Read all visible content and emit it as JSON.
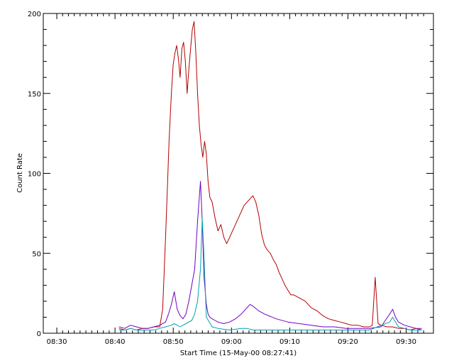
{
  "chart_data": {
    "type": "line",
    "title": "",
    "xlabel": "Start Time (15-May-00 08:27:41)",
    "ylabel": "Count Rate",
    "x_unit": "minutes after 08:27:41",
    "xlim": [
      0,
      67
    ],
    "ylim": [
      0,
      200
    ],
    "grid": false,
    "x_ticks": [
      {
        "value": 2.32,
        "label": "08:30"
      },
      {
        "value": 12.32,
        "label": "08:40"
      },
      {
        "value": 22.32,
        "label": "08:50"
      },
      {
        "value": 32.32,
        "label": "09:00"
      },
      {
        "value": 42.32,
        "label": "09:10"
      },
      {
        "value": 52.32,
        "label": "09:20"
      },
      {
        "value": 62.32,
        "label": "09:30"
      }
    ],
    "y_ticks": [
      {
        "value": 0,
        "label": "0"
      },
      {
        "value": 50,
        "label": "50"
      },
      {
        "value": 100,
        "label": "100"
      },
      {
        "value": 150,
        "label": "150"
      },
      {
        "value": 200,
        "label": "200"
      }
    ],
    "series": [
      {
        "color": "#b30000",
        "x": [
          13.0,
          14.0,
          15.0,
          16.0,
          17.0,
          18.0,
          19.0,
          20.0,
          20.5,
          21.0,
          21.3,
          21.6,
          22.0,
          22.3,
          22.6,
          22.9,
          23.2,
          23.5,
          23.8,
          24.1,
          24.4,
          24.7,
          25.0,
          25.3,
          25.6,
          25.9,
          26.2,
          26.5,
          26.8,
          27.1,
          27.4,
          27.7,
          28.0,
          28.3,
          28.6,
          29.0,
          29.5,
          30.0,
          30.5,
          31.0,
          31.5,
          32.0,
          32.5,
          33.0,
          33.5,
          34.0,
          34.5,
          35.0,
          35.5,
          36.0,
          36.5,
          37.0,
          37.5,
          38.0,
          38.5,
          39.0,
          39.5,
          40.0,
          40.5,
          41.0,
          41.5,
          42.0,
          42.5,
          43.0,
          43.5,
          44.0,
          44.5,
          45.0,
          46.0,
          47.0,
          48.0,
          49.0,
          50.0,
          51.0,
          52.0,
          53.0,
          54.0,
          55.0,
          56.0,
          56.5,
          57.0,
          57.5,
          58.0,
          59.0,
          60.0,
          61.0,
          62.0,
          63.0,
          64.0,
          65.0
        ],
        "y": [
          3,
          2,
          3,
          2,
          3,
          3,
          4,
          4,
          15,
          60,
          90,
          120,
          150,
          168,
          175,
          180,
          172,
          160,
          178,
          182,
          170,
          150,
          165,
          178,
          190,
          195,
          175,
          150,
          130,
          118,
          110,
          120,
          112,
          95,
          85,
          82,
          72,
          64,
          68,
          60,
          56,
          60,
          64,
          68,
          72,
          76,
          80,
          82,
          84,
          86,
          82,
          74,
          62,
          55,
          52,
          50,
          46,
          43,
          38,
          34,
          30,
          27,
          24,
          24,
          23,
          22,
          21,
          20,
          16,
          14,
          11,
          9,
          8,
          7,
          6,
          5,
          5,
          4,
          4,
          5,
          35,
          6,
          5,
          4,
          4,
          3,
          3,
          2,
          3,
          2
        ]
      },
      {
        "color": "#7000c0",
        "x": [
          13.0,
          14.0,
          15.0,
          16.0,
          17.0,
          18.0,
          19.0,
          20.0,
          21.0,
          21.5,
          22.0,
          22.5,
          23.0,
          23.5,
          24.0,
          24.5,
          25.0,
          25.5,
          26.0,
          26.5,
          27.0,
          27.3,
          27.6,
          28.0,
          28.3,
          28.6,
          29.0,
          29.5,
          30.0,
          31.0,
          32.0,
          33.0,
          34.0,
          35.0,
          35.5,
          36.0,
          37.0,
          38.0,
          40.0,
          42.0,
          44.0,
          46.0,
          48.0,
          50.0,
          52.0,
          54.0,
          56.0,
          58.0,
          59.5,
          60.0,
          60.5,
          61.0,
          62.0,
          63.0,
          64.0,
          65.0
        ],
        "y": [
          4,
          3,
          5,
          4,
          3,
          3,
          4,
          5,
          7,
          12,
          18,
          26,
          15,
          11,
          9,
          12,
          20,
          30,
          40,
          70,
          95,
          70,
          35,
          18,
          12,
          10,
          9,
          8,
          7,
          6,
          7,
          9,
          12,
          16,
          18,
          17,
          14,
          12,
          9,
          7,
          6,
          5,
          4,
          4,
          3,
          3,
          3,
          4,
          12,
          15,
          10,
          7,
          5,
          4,
          3,
          3
        ]
      },
      {
        "color": "#00a0b0",
        "x": [
          13.0,
          14.0,
          15.0,
          16.0,
          17.0,
          18.0,
          19.0,
          20.0,
          21.0,
          22.0,
          22.5,
          23.0,
          23.5,
          24.0,
          24.5,
          25.0,
          25.5,
          26.0,
          26.5,
          27.0,
          27.3,
          27.6,
          28.0,
          29.0,
          30.0,
          32.0,
          34.0,
          35.0,
          36.0,
          38.0,
          40.0,
          44.0,
          48.0,
          52.0,
          56.0,
          59.5,
          60.0,
          60.5,
          61.0,
          62.0,
          63.0,
          64.0,
          65.0
        ],
        "y": [
          2,
          2,
          3,
          2,
          2,
          2,
          2,
          3,
          4,
          5,
          6,
          5,
          4,
          5,
          6,
          7,
          8,
          12,
          20,
          40,
          72,
          48,
          10,
          4,
          3,
          2,
          3,
          3,
          2,
          2,
          2,
          2,
          2,
          2,
          2,
          7,
          10,
          7,
          4,
          3,
          2,
          2,
          2
        ]
      }
    ]
  }
}
